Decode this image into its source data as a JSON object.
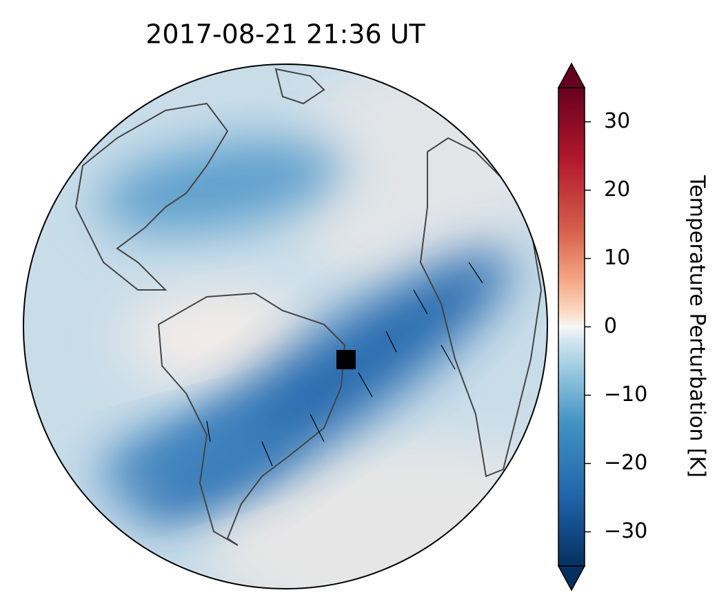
{
  "title": "2017-08-21  21:36 UT",
  "colorbar": {
    "label": "Temperature Perturbation [K]",
    "lim": [
      -35,
      35
    ],
    "ticks": [
      30,
      20,
      10,
      0,
      {
        "value": -10,
        "label": "−10"
      },
      {
        "value": -20,
        "label": "−20"
      },
      {
        "value": -30,
        "label": "−30"
      }
    ]
  }
}
